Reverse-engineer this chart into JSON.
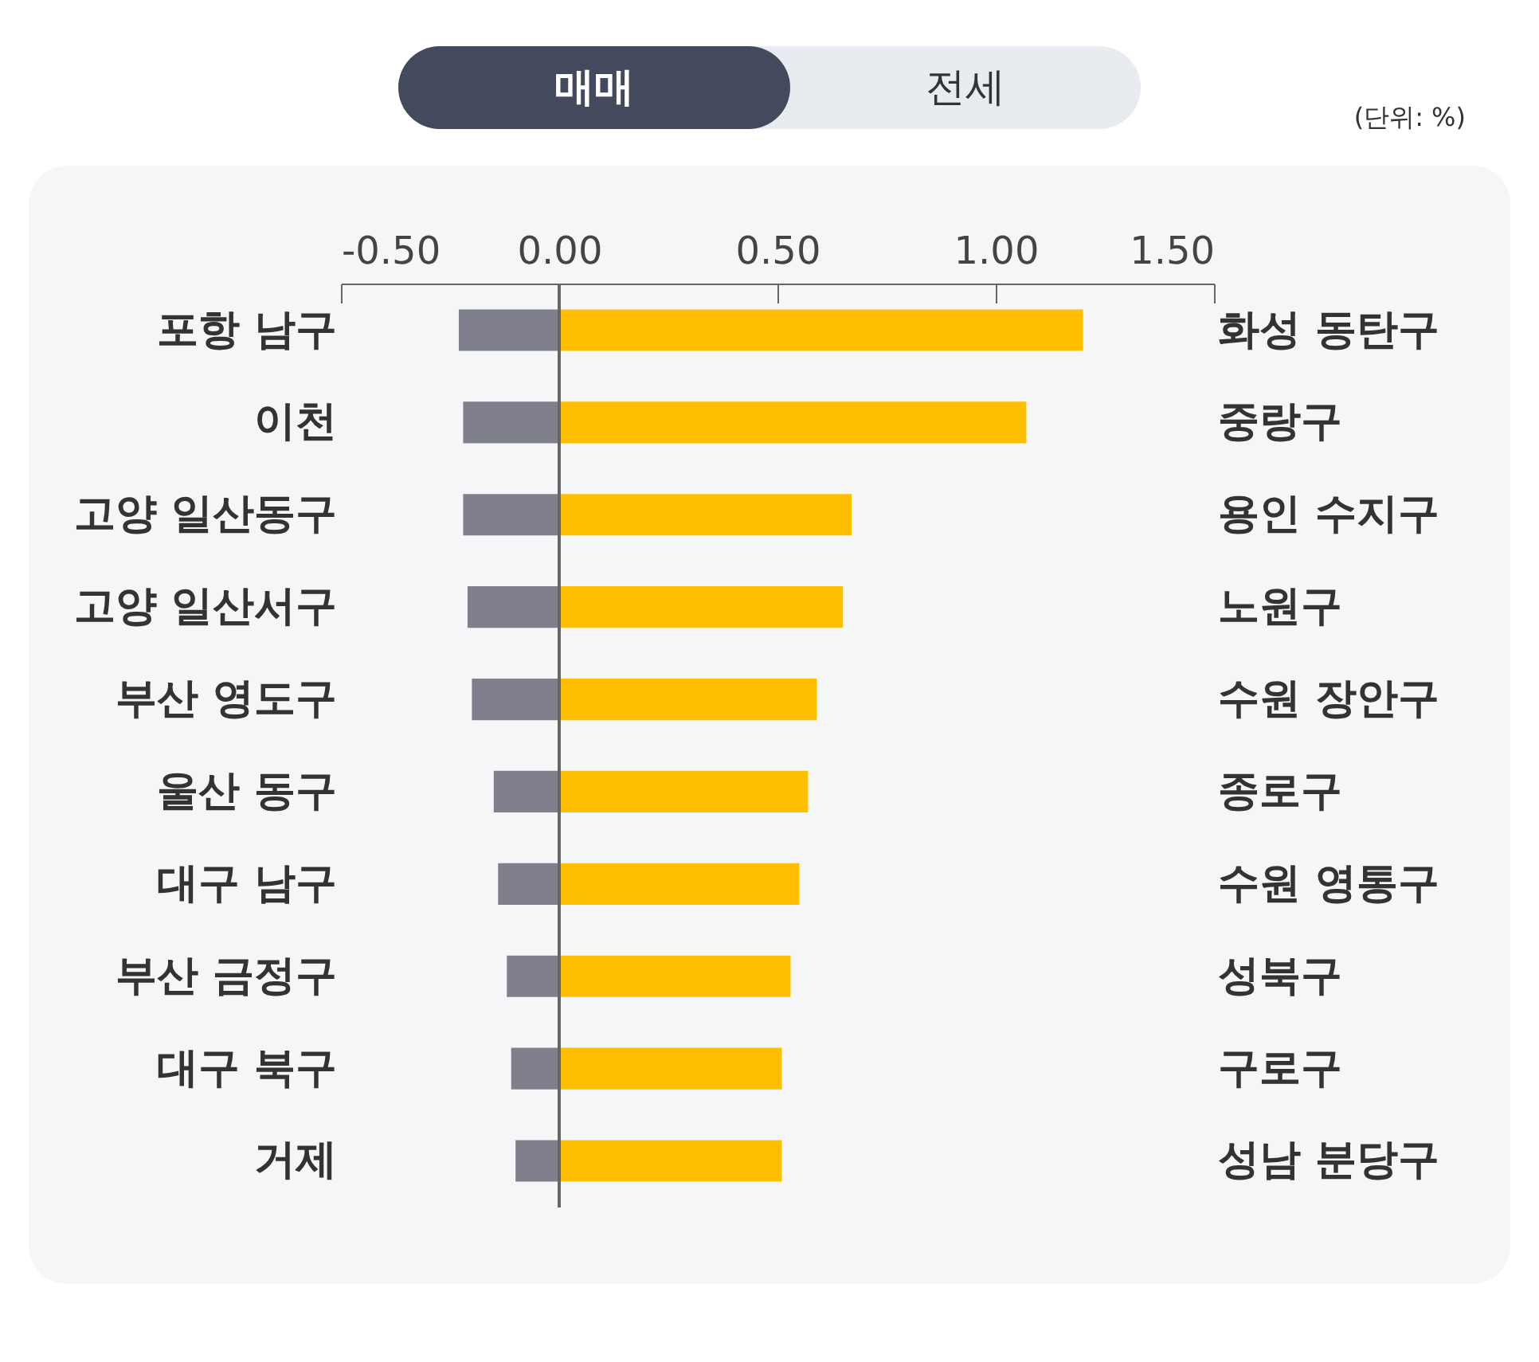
{
  "chart_data": [
    {
      "type": "bar",
      "orientation": "horizontal",
      "categories": [
        "포항 남구",
        "이천",
        "고양 일산동구",
        "고양 일산서구",
        "부산 영도구",
        "울산 동구",
        "대구 남구",
        "부산 금정구",
        "대구 북구",
        "거제"
      ],
      "series": [
        {
          "color": "#7f808c",
          "values": [
            -0.23,
            -0.22,
            -0.22,
            -0.21,
            -0.2,
            -0.15,
            -0.14,
            -0.12,
            -0.11,
            -0.1
          ]
        }
      ],
      "xlim": [
        -0.5,
        1.5
      ],
      "xticks": [
        {
          "value": -0.5,
          "label": "-0.50"
        },
        {
          "value": 0,
          "label": "0.00"
        },
        {
          "value": 0.5,
          "label": "0.50"
        },
        {
          "value": 1,
          "label": "1.00"
        },
        {
          "value": 1.5,
          "label": "1.50"
        }
      ],
      "ref_lines": [
        {
          "axis": "x",
          "value": 0,
          "color": "#666666"
        }
      ],
      "annotations": [
        "매매",
        "전세",
        "(단위: %)"
      ]
    },
    {
      "type": "bar",
      "orientation": "horizontal",
      "categories": [
        "화성 동탄구",
        "중랑구",
        "용인 수지구",
        "노원구",
        "수원 장안구",
        "종로구",
        "수원 영통구",
        "성북구",
        "구로구",
        "성남 분당구"
      ],
      "series": [
        {
          "color": "#ffbe00",
          "values": [
            1.2,
            1.07,
            0.67,
            0.65,
            0.59,
            0.57,
            0.55,
            0.53,
            0.51,
            0.51
          ]
        }
      ],
      "xlim": [
        -0.5,
        1.5
      ],
      "tick_labels": "y"
    }
  ]
}
